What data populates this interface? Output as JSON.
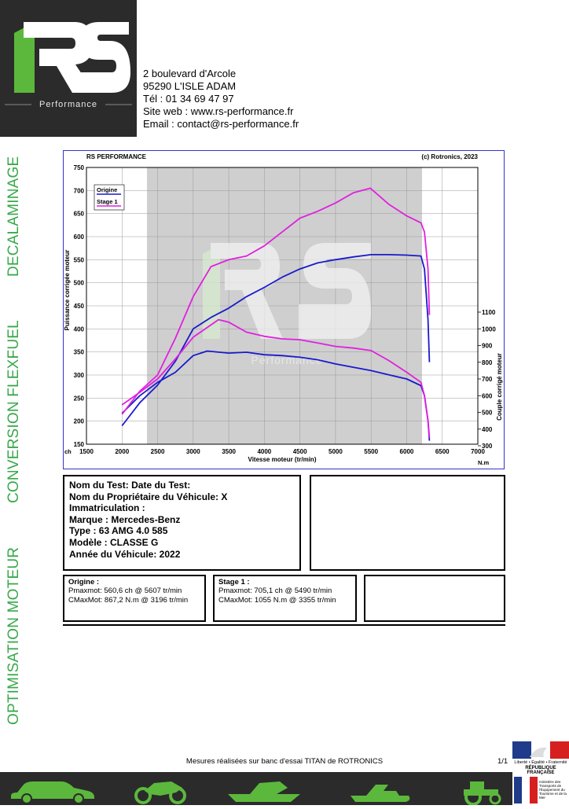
{
  "header": {
    "logo_sub": "Performance",
    "address_lines": [
      "2 boulevard d'Arcole",
      "95290 L'ISLE ADAM",
      "Tél : 01 34 69 47 97",
      "Site web : www.rs-performance.fr",
      "Email : contact@rs-performance.fr"
    ]
  },
  "side_labels": [
    "DECALAMINAGE",
    "CONVERSION FLEXFUEL",
    "OPTIMISATION MOTEUR"
  ],
  "chart": {
    "header_left": "RS PERFORMANCE",
    "header_right": "(c) Rotronics, 2023",
    "x_unit_left": "ch",
    "x_unit_right": "N.m",
    "watermark_sub": "Performance"
  },
  "chart_data": {
    "type": "line",
    "xlabel": "Vitesse moteur (tr/min)",
    "ylabel": "Puissance corrigée moteur",
    "y2label": "Couple corrigé moteur",
    "xlim": [
      1500,
      7000
    ],
    "ylim": [
      150,
      750
    ],
    "y2lim": [
      300,
      1100
    ],
    "xticks": [
      1500,
      2000,
      2500,
      3000,
      3500,
      4000,
      4500,
      5000,
      5500,
      6000,
      6500,
      7000
    ],
    "yticks": [
      150,
      200,
      250,
      300,
      350,
      400,
      450,
      500,
      550,
      600,
      650,
      700,
      750
    ],
    "y2ticks": [
      300,
      400,
      500,
      600,
      700,
      800,
      900,
      1000,
      1100
    ],
    "grid": true,
    "legend_position": "top-left",
    "series": [
      {
        "name": "Origine",
        "color": "#1a1acc",
        "power_x": [
          2000,
          2250,
          2500,
          2750,
          3000,
          3250,
          3500,
          3750,
          4000,
          4250,
          4500,
          4750,
          5000,
          5250,
          5500,
          5607,
          5750,
          6000,
          6200,
          6250,
          6300,
          6320
        ],
        "power_y": [
          190,
          240,
          278,
          330,
          400,
          425,
          445,
          470,
          490,
          512,
          530,
          543,
          550,
          556,
          561,
          561,
          561,
          560,
          558,
          530,
          420,
          328
        ],
        "torque_x": [
          2000,
          2250,
          2500,
          2750,
          3000,
          3196,
          3500,
          3750,
          4000,
          4250,
          4500,
          4750,
          5000,
          5250,
          5500,
          5750,
          6000,
          6200,
          6250,
          6300,
          6320
        ],
        "torque_y": [
          495,
          600,
          680,
          740,
          840,
          867,
          855,
          860,
          845,
          840,
          830,
          815,
          790,
          770,
          750,
          725,
          700,
          660,
          600,
          450,
          330
        ]
      },
      {
        "name": "Stage 1",
        "color": "#e020e0",
        "power_x": [
          2000,
          2250,
          2500,
          2750,
          3000,
          3250,
          3500,
          3750,
          4000,
          4250,
          4500,
          4750,
          5000,
          5250,
          5490,
          5750,
          6000,
          6200,
          6250,
          6300,
          6320
        ],
        "power_y": [
          215,
          265,
          300,
          380,
          470,
          535,
          550,
          558,
          580,
          610,
          640,
          655,
          673,
          695,
          705,
          670,
          645,
          630,
          610,
          530,
          430
        ],
        "torque_x": [
          2000,
          2250,
          2500,
          2750,
          3000,
          3355,
          3500,
          3750,
          4000,
          4250,
          4500,
          4750,
          5000,
          5250,
          5500,
          5750,
          6000,
          6200,
          6250,
          6300,
          6320
        ],
        "torque_y": [
          545,
          620,
          700,
          820,
          950,
          1055,
          1040,
          980,
          955,
          940,
          935,
          915,
          895,
          885,
          870,
          810,
          740,
          680,
          600,
          450,
          350
        ]
      }
    ]
  },
  "info": {
    "lines": [
      "Nom du Test: Date du Test:",
      "Nom du Propriétaire du Véhicule: X",
      "Immatriculation  :",
      "Marque  : Mercedes-Benz",
      "Type  : 63 AMG 4.0 585",
      "Modèle  : CLASSE G",
      "Année du Véhicule: 2022"
    ]
  },
  "results": {
    "origine": {
      "title": "Origine :",
      "pmax": "Pmaxmot: 560,6 ch @ 5607 tr/min",
      "cmax": "CMaxMot: 867,2 N.m @ 3196 tr/min"
    },
    "stage1": {
      "title": "Stage 1 :",
      "pmax": "Pmaxmot: 705,1 ch @ 5490 tr/min",
      "cmax": "CMaxMot: 1055 N.m @ 3355 tr/min"
    }
  },
  "footer": {
    "text": "Mesures réalisées sur banc d'essai TITAN de ROTRONICS",
    "page": "1/1",
    "republic_motto": "Liberté • Égalité • Fraternité",
    "republic_name": "RÉPUBLIQUE FRANÇAISE",
    "ministry": "ministère des Transports de l'Équipement du Tourisme et de la Mer",
    "icons": [
      "car-icon",
      "motorcycle-icon",
      "boat-icon",
      "jetski-icon",
      "tractor-icon"
    ]
  }
}
